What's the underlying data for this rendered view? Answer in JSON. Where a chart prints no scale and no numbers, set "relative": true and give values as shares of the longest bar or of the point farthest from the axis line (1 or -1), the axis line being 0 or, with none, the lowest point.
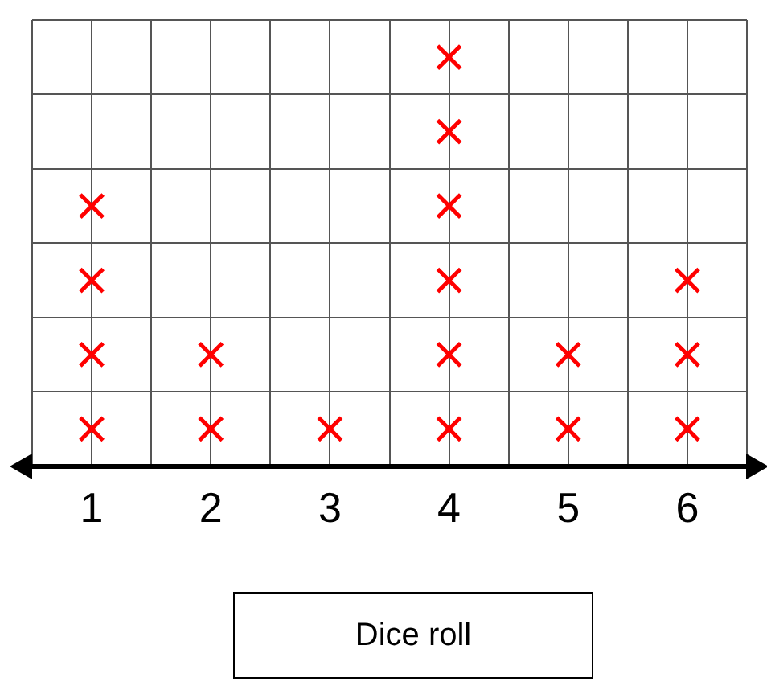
{
  "chart_data": {
    "type": "scatter",
    "xlabel": "Dice roll",
    "marker": "cross",
    "grid": true,
    "legend": false,
    "relative": true,
    "xlim": [
      0.5,
      6.5
    ],
    "xticks": [
      {
        "value": 0.5,
        "label": null
      },
      1,
      {
        "value": 1.5,
        "label": null
      },
      2,
      {
        "value": 2.5,
        "label": null
      },
      3,
      {
        "value": 3.5,
        "label": null
      },
      4,
      {
        "value": 4.5,
        "label": null
      },
      5,
      {
        "value": 5.5,
        "label": null
      },
      6,
      {
        "value": 6.5,
        "label": null
      }
    ],
    "series": [
      {
        "color": "#ff0000",
        "x": [
          1,
          1,
          1,
          1,
          2,
          2,
          3,
          4,
          4,
          4,
          4,
          4,
          4,
          5,
          5,
          6,
          6,
          6
        ],
        "values": [
          0.0909,
          0.2727,
          0.4545,
          0.6364,
          0.0909,
          0.2727,
          0.0909,
          0.0909,
          0.2727,
          0.4545,
          0.6364,
          0.8182,
          1,
          0.0909,
          0.2727,
          0.0909,
          0.2727,
          0.4545
        ]
      }
    ]
  }
}
